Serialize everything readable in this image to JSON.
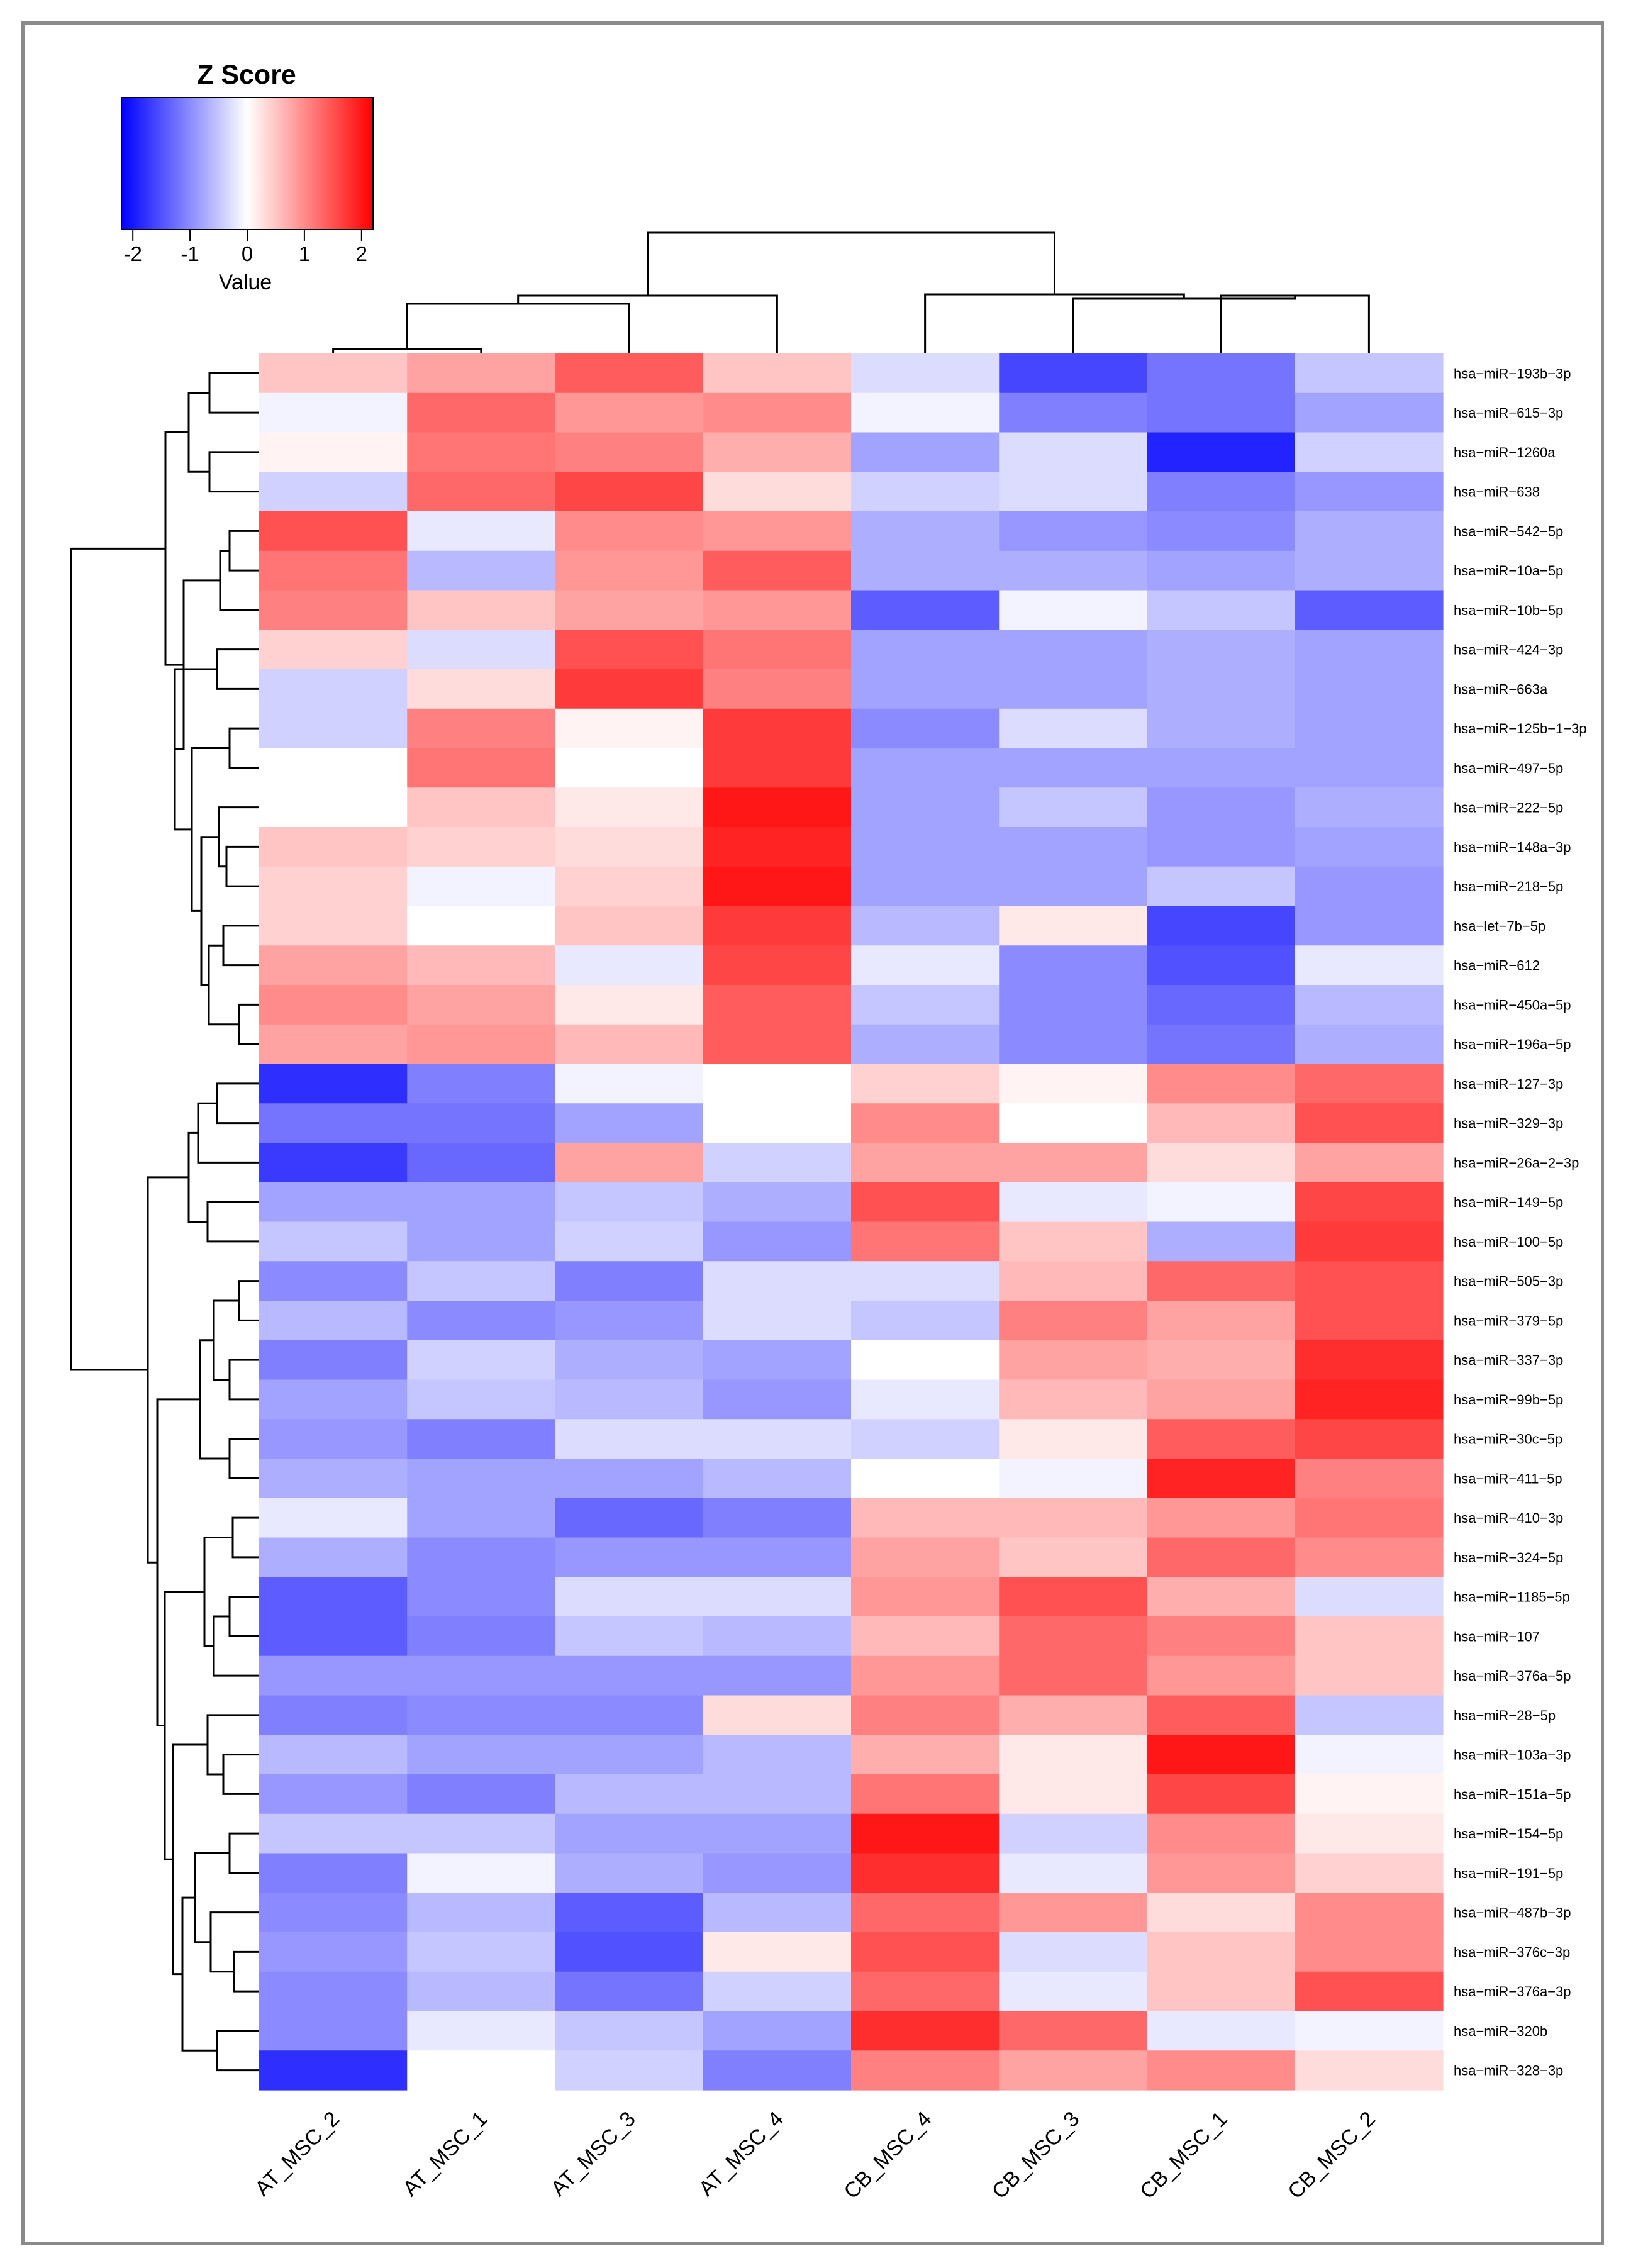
{
  "chart_data": {
    "type": "heatmap",
    "title": "",
    "legend": {
      "title": "Z Score",
      "label": "Value",
      "ticks": [
        "-2",
        "-1",
        "0",
        "1",
        "2"
      ],
      "range": [
        -2.2,
        2.2
      ],
      "colors": {
        "low": "#0000ff",
        "mid": "#ffffff",
        "high": "#ff0000"
      }
    },
    "columns": [
      "AT_MSC_2",
      "AT_MSC_1",
      "AT_MSC_3",
      "AT_MSC_4",
      "CB_MSC_4",
      "CB_MSC_3",
      "CB_MSC_1",
      "CB_MSC_2"
    ],
    "rows": [
      "hsa−miR−193b−3p",
      "hsa−miR−615−3p",
      "hsa−miR−1260a",
      "hsa−miR−638",
      "hsa−miR−542−5p",
      "hsa−miR−10a−5p",
      "hsa−miR−10b−5p",
      "hsa−miR−424−3p",
      "hsa−miR−663a",
      "hsa−miR−125b−1−3p",
      "hsa−miR−497−5p",
      "hsa−miR−222−5p",
      "hsa−miR−148a−3p",
      "hsa−miR−218−5p",
      "hsa−let−7b−5p",
      "hsa−miR−612",
      "hsa−miR−450a−5p",
      "hsa−miR−196a−5p",
      "hsa−miR−127−3p",
      "hsa−miR−329−3p",
      "hsa−miR−26a−2−3p",
      "hsa−miR−149−5p",
      "hsa−miR−100−5p",
      "hsa−miR−505−3p",
      "hsa−miR−379−5p",
      "hsa−miR−337−3p",
      "hsa−miR−99b−5p",
      "hsa−miR−30c−5p",
      "hsa−miR−411−5p",
      "hsa−miR−410−3p",
      "hsa−miR−324−5p",
      "hsa−miR−1185−5p",
      "hsa−miR−107",
      "hsa−miR−376a−5p",
      "hsa−miR−28−5p",
      "hsa−miR−103a−3p",
      "hsa−miR−151a−5p",
      "hsa−miR−154−5p",
      "hsa−miR−191−5p",
      "hsa−miR−487b−3p",
      "hsa−miR−376c−3p",
      "hsa−miR−376a−3p",
      "hsa−miR−320b",
      "hsa−miR−328−3p"
    ],
    "values": [
      [
        0.5,
        0.8,
        1.4,
        0.5,
        -0.3,
        -1.6,
        -1.2,
        -0.5
      ],
      [
        -0.1,
        1.3,
        0.9,
        1.0,
        -0.1,
        -1.1,
        -1.2,
        -0.8
      ],
      [
        0.1,
        1.2,
        1.1,
        0.7,
        -0.8,
        -0.3,
        -1.9,
        -0.4
      ],
      [
        -0.4,
        1.3,
        1.6,
        0.3,
        -0.4,
        -0.3,
        -1.1,
        -0.9
      ],
      [
        1.5,
        -0.2,
        1.0,
        0.9,
        -0.7,
        -0.9,
        -1.0,
        -0.7
      ],
      [
        1.2,
        -0.6,
        0.9,
        1.4,
        -0.7,
        -0.7,
        -0.8,
        -0.7
      ],
      [
        1.1,
        0.5,
        0.8,
        0.9,
        -1.4,
        -0.1,
        -0.5,
        -1.4
      ],
      [
        0.4,
        -0.3,
        1.5,
        1.2,
        -0.8,
        -0.8,
        -0.7,
        -0.8
      ],
      [
        -0.4,
        0.3,
        1.7,
        1.1,
        -0.8,
        -0.8,
        -0.7,
        -0.8
      ],
      [
        -0.4,
        1.1,
        0.1,
        1.7,
        -1.0,
        -0.3,
        -0.7,
        -0.8
      ],
      [
        0.0,
        1.2,
        0.0,
        1.7,
        -0.8,
        -0.8,
        -0.8,
        -0.8
      ],
      [
        0.0,
        0.5,
        0.2,
        2.0,
        -0.8,
        -0.5,
        -0.9,
        -0.7
      ],
      [
        0.5,
        0.4,
        0.3,
        1.9,
        -0.8,
        -0.8,
        -0.9,
        -0.8
      ],
      [
        0.4,
        -0.1,
        0.4,
        2.0,
        -0.8,
        -0.8,
        -0.5,
        -0.9
      ],
      [
        0.4,
        0.0,
        0.5,
        1.7,
        -0.6,
        0.2,
        -1.6,
        -0.9
      ],
      [
        0.8,
        0.6,
        -0.2,
        1.6,
        -0.2,
        -1.0,
        -1.5,
        -0.2
      ],
      [
        1.0,
        0.8,
        0.2,
        1.4,
        -0.5,
        -1.0,
        -1.3,
        -0.6
      ],
      [
        0.8,
        0.9,
        0.6,
        1.4,
        -0.7,
        -1.0,
        -1.2,
        -0.7
      ],
      [
        -1.8,
        -1.1,
        -0.1,
        0.0,
        0.4,
        0.1,
        1.0,
        1.3
      ],
      [
        -1.2,
        -1.2,
        -0.8,
        0.0,
        1.0,
        0.0,
        0.6,
        1.5
      ],
      [
        -1.7,
        -1.3,
        0.8,
        -0.4,
        0.8,
        0.8,
        0.3,
        0.8
      ],
      [
        -0.8,
        -0.8,
        -0.5,
        -0.7,
        1.5,
        -0.2,
        -0.1,
        1.6
      ],
      [
        -0.5,
        -0.8,
        -0.4,
        -0.9,
        1.2,
        0.5,
        -0.7,
        1.7
      ],
      [
        -1.0,
        -0.5,
        -1.1,
        -0.3,
        -0.3,
        0.6,
        1.3,
        1.5
      ],
      [
        -0.6,
        -1.0,
        -0.9,
        -0.3,
        -0.5,
        1.1,
        0.8,
        1.5
      ],
      [
        -1.1,
        -0.4,
        -0.7,
        -0.8,
        0.0,
        0.8,
        0.7,
        1.8
      ],
      [
        -0.8,
        -0.5,
        -0.6,
        -0.9,
        -0.2,
        0.6,
        0.8,
        1.9
      ],
      [
        -0.9,
        -1.1,
        -0.3,
        -0.3,
        -0.4,
        0.2,
        1.4,
        1.6
      ],
      [
        -0.7,
        -0.8,
        -0.8,
        -0.6,
        0.0,
        -0.1,
        1.9,
        1.1
      ],
      [
        -0.2,
        -0.8,
        -1.3,
        -1.1,
        0.6,
        0.6,
        0.9,
        1.2
      ],
      [
        -0.7,
        -1.0,
        -0.9,
        -0.9,
        0.8,
        0.5,
        1.3,
        1.0
      ],
      [
        -1.4,
        -1.0,
        -0.3,
        -0.3,
        0.9,
        1.5,
        0.7,
        -0.3
      ],
      [
        -1.4,
        -1.1,
        -0.5,
        -0.6,
        0.6,
        1.3,
        1.1,
        0.5
      ],
      [
        -0.9,
        -0.9,
        -0.9,
        -0.9,
        0.9,
        1.3,
        0.9,
        0.5
      ],
      [
        -1.1,
        -1.0,
        -1.0,
        0.3,
        1.1,
        0.7,
        1.4,
        -0.5
      ],
      [
        -0.6,
        -0.8,
        -0.8,
        -0.6,
        0.7,
        0.2,
        2.0,
        -0.1
      ],
      [
        -0.9,
        -1.1,
        -0.6,
        -0.6,
        1.2,
        0.2,
        1.6,
        0.1
      ],
      [
        -0.5,
        -0.5,
        -0.8,
        -0.8,
        2.0,
        -0.4,
        1.0,
        0.2
      ],
      [
        -1.1,
        -0.1,
        -0.7,
        -0.9,
        1.8,
        -0.2,
        0.9,
        0.4
      ],
      [
        -1.0,
        -0.6,
        -1.4,
        -0.6,
        1.3,
        0.9,
        0.3,
        1.0
      ],
      [
        -0.9,
        -0.5,
        -1.5,
        0.2,
        1.5,
        -0.3,
        0.5,
        1.0
      ],
      [
        -1.0,
        -0.6,
        -1.2,
        -0.4,
        1.3,
        -0.2,
        0.5,
        1.5
      ],
      [
        -1.0,
        -0.2,
        -0.5,
        -0.8,
        1.8,
        1.3,
        -0.2,
        -0.1
      ],
      [
        -1.8,
        0.0,
        -0.4,
        -1.1,
        1.1,
        0.8,
        1.0,
        0.3
      ]
    ]
  }
}
